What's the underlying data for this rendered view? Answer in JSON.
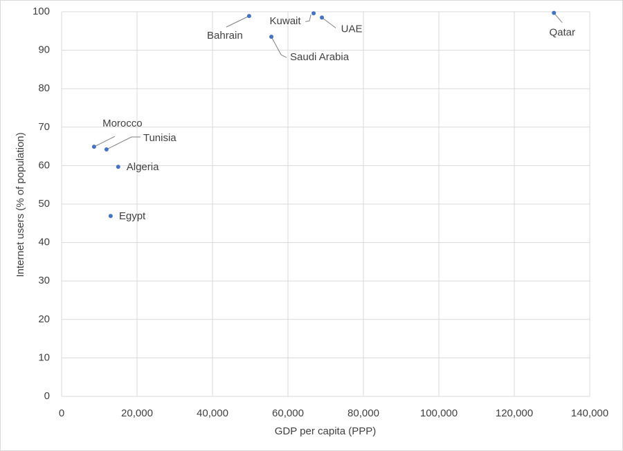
{
  "chart_data": {
    "type": "scatter",
    "x_label": "GDP per capita (PPP)",
    "y_label": "Internet users (% of population)",
    "series": [
      {
        "color": "#4472c4",
        "labels": [
          "Bahrain",
          "Kuwait",
          "UAE",
          "Saudi Arabia",
          "Qatar",
          "Morocco",
          "Tunisia",
          "Algeria",
          "Egypt"
        ],
        "x": [
          49700,
          66800,
          69000,
          55600,
          130500,
          8600,
          11900,
          15000,
          13000
        ],
        "values": [
          98.9,
          99.6,
          98.5,
          93.5,
          99.7,
          64.9,
          64.2,
          59.7,
          46.9
        ]
      }
    ],
    "xlim": [
      0,
      140000
    ],
    "xticks": [
      0,
      {
        "value": 20000,
        "label": "20,000"
      },
      {
        "value": 40000,
        "label": "40,000"
      },
      {
        "value": 60000,
        "label": "60,000"
      },
      {
        "value": 80000,
        "label": "80,000"
      },
      {
        "value": 100000,
        "label": "100,000"
      },
      {
        "value": 120000,
        "label": "120,000"
      },
      {
        "value": 140000,
        "label": "140,000"
      }
    ],
    "ylim": [
      0,
      100
    ],
    "yticks": [
      0,
      10,
      20,
      30,
      40,
      50,
      60,
      70,
      80,
      90,
      100
    ],
    "grid": true
  }
}
